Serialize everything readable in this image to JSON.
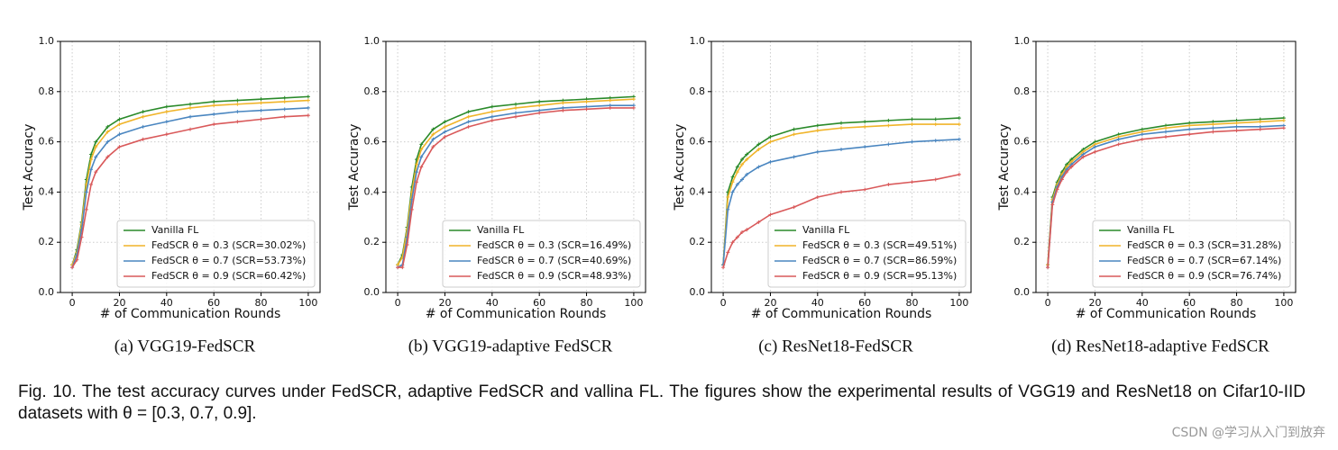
{
  "chart_data": [
    {
      "type": "line",
      "caption": "(a)  VGG19-FedSCR",
      "xlabel": "# of Communication Rounds",
      "ylabel": "Test Accuracy",
      "x": [
        0,
        2,
        4,
        6,
        8,
        10,
        15,
        20,
        30,
        40,
        50,
        60,
        70,
        80,
        90,
        100
      ],
      "xlim": [
        -5,
        105
      ],
      "ylim": [
        0,
        1
      ],
      "xticks": [
        0,
        20,
        40,
        60,
        80,
        100
      ],
      "yticks": [
        {
          "value": 0,
          "label": "0.0"
        },
        0.2,
        0.4,
        0.6,
        0.8,
        {
          "value": 1,
          "label": "1.0"
        }
      ],
      "grid": true,
      "legend": "lower right",
      "series": [
        {
          "name": "Vanilla FL",
          "color": "#2a8a2a",
          "values": [
            0.11,
            0.17,
            0.28,
            0.45,
            0.55,
            0.6,
            0.66,
            0.69,
            0.72,
            0.74,
            0.75,
            0.76,
            0.765,
            0.77,
            0.775,
            0.78
          ]
        },
        {
          "name": "FedSCR θ = 0.3 (SCR=30.02%)",
          "color": "#f0b429",
          "values": [
            0.11,
            0.16,
            0.27,
            0.43,
            0.53,
            0.58,
            0.64,
            0.67,
            0.7,
            0.72,
            0.735,
            0.745,
            0.75,
            0.755,
            0.76,
            0.765
          ]
        },
        {
          "name": "FedSCR θ = 0.7 (SCR=53.73%)",
          "color": "#4a86c0",
          "values": [
            0.1,
            0.15,
            0.25,
            0.4,
            0.49,
            0.54,
            0.6,
            0.63,
            0.66,
            0.68,
            0.7,
            0.71,
            0.72,
            0.725,
            0.73,
            0.735
          ]
        },
        {
          "name": "FedSCR θ = 0.9 (SCR=60.42%)",
          "color": "#d9595a",
          "values": [
            0.1,
            0.13,
            0.22,
            0.33,
            0.43,
            0.48,
            0.54,
            0.58,
            0.61,
            0.63,
            0.65,
            0.67,
            0.68,
            0.69,
            0.7,
            0.705
          ]
        }
      ]
    },
    {
      "type": "line",
      "caption": "(b)  VGG19-adaptive FedSCR",
      "xlabel": "# of Communication Rounds",
      "ylabel": "Test Accuracy",
      "x": [
        0,
        2,
        4,
        6,
        8,
        10,
        15,
        20,
        30,
        40,
        50,
        60,
        70,
        80,
        90,
        100
      ],
      "xlim": [
        -5,
        105
      ],
      "ylim": [
        0,
        1
      ],
      "xticks": [
        0,
        20,
        40,
        60,
        80,
        100
      ],
      "yticks": [
        {
          "value": 0,
          "label": "0.0"
        },
        0.2,
        0.4,
        0.6,
        0.8,
        {
          "value": 1,
          "label": "1.0"
        }
      ],
      "grid": true,
      "legend": "lower right",
      "series": [
        {
          "name": "Vanilla FL",
          "color": "#2a8a2a",
          "values": [
            0.11,
            0.15,
            0.26,
            0.42,
            0.53,
            0.59,
            0.65,
            0.68,
            0.72,
            0.74,
            0.75,
            0.76,
            0.765,
            0.77,
            0.775,
            0.78
          ]
        },
        {
          "name": "FedSCR θ = 0.3 (SCR=16.49%)",
          "color": "#f0b429",
          "values": [
            0.11,
            0.14,
            0.25,
            0.4,
            0.51,
            0.57,
            0.63,
            0.66,
            0.7,
            0.72,
            0.735,
            0.745,
            0.755,
            0.76,
            0.765,
            0.77
          ]
        },
        {
          "name": "FedSCR θ = 0.7 (SCR=40.69%)",
          "color": "#4a86c0",
          "values": [
            0.1,
            0.11,
            0.22,
            0.37,
            0.48,
            0.54,
            0.61,
            0.64,
            0.68,
            0.7,
            0.715,
            0.725,
            0.735,
            0.74,
            0.745,
            0.745
          ]
        },
        {
          "name": "FedSCR θ = 0.9 (SCR=48.93%)",
          "color": "#d9595a",
          "values": [
            0.1,
            0.1,
            0.19,
            0.33,
            0.44,
            0.5,
            0.58,
            0.62,
            0.66,
            0.685,
            0.7,
            0.715,
            0.725,
            0.73,
            0.735,
            0.735
          ]
        }
      ]
    },
    {
      "type": "line",
      "caption": "(c)  ResNet18-FedSCR",
      "xlabel": "# of Communication Rounds",
      "ylabel": "Test Accuracy",
      "x": [
        0,
        2,
        4,
        6,
        8,
        10,
        15,
        20,
        30,
        40,
        50,
        60,
        70,
        80,
        90,
        100
      ],
      "xlim": [
        -5,
        105
      ],
      "ylim": [
        0,
        1
      ],
      "xticks": [
        0,
        20,
        40,
        60,
        80,
        100
      ],
      "yticks": [
        {
          "value": 0,
          "label": "0.0"
        },
        0.2,
        0.4,
        0.6,
        0.8,
        {
          "value": 1,
          "label": "1.0"
        }
      ],
      "grid": true,
      "legend": "lower right",
      "series": [
        {
          "name": "Vanilla FL",
          "color": "#2a8a2a",
          "values": [
            0.11,
            0.4,
            0.46,
            0.5,
            0.53,
            0.55,
            0.59,
            0.62,
            0.65,
            0.665,
            0.675,
            0.68,
            0.685,
            0.69,
            0.69,
            0.695
          ]
        },
        {
          "name": "FedSCR θ = 0.3 (SCR=49.51%)",
          "color": "#f0b429",
          "values": [
            0.11,
            0.38,
            0.44,
            0.48,
            0.51,
            0.53,
            0.57,
            0.6,
            0.63,
            0.645,
            0.655,
            0.66,
            0.665,
            0.67,
            0.67,
            0.67
          ]
        },
        {
          "name": "FedSCR θ = 0.7 (SCR=86.59%)",
          "color": "#4a86c0",
          "values": [
            0.11,
            0.33,
            0.4,
            0.43,
            0.45,
            0.47,
            0.5,
            0.52,
            0.54,
            0.56,
            0.57,
            0.58,
            0.59,
            0.6,
            0.605,
            0.61
          ]
        },
        {
          "name": "FedSCR θ = 0.9 (SCR=95.13%)",
          "color": "#d9595a",
          "values": [
            0.1,
            0.16,
            0.2,
            0.22,
            0.24,
            0.25,
            0.28,
            0.31,
            0.34,
            0.38,
            0.4,
            0.41,
            0.43,
            0.44,
            0.45,
            0.47
          ]
        }
      ]
    },
    {
      "type": "line",
      "caption": "(d)  ResNet18-adaptive FedSCR",
      "xlabel": "# of Communication Rounds",
      "ylabel": "Test Accuracy",
      "x": [
        0,
        2,
        4,
        6,
        8,
        10,
        15,
        20,
        30,
        40,
        50,
        60,
        70,
        80,
        90,
        100
      ],
      "xlim": [
        -5,
        105
      ],
      "ylim": [
        0,
        1
      ],
      "xticks": [
        0,
        20,
        40,
        60,
        80,
        100
      ],
      "yticks": [
        {
          "value": 0,
          "label": "0.0"
        },
        0.2,
        0.4,
        0.6,
        0.8,
        {
          "value": 1,
          "label": "1.0"
        }
      ],
      "grid": true,
      "legend": "lower right",
      "series": [
        {
          "name": "Vanilla FL",
          "color": "#2a8a2a",
          "values": [
            0.11,
            0.38,
            0.44,
            0.48,
            0.51,
            0.53,
            0.57,
            0.6,
            0.63,
            0.65,
            0.665,
            0.675,
            0.68,
            0.685,
            0.69,
            0.695
          ]
        },
        {
          "name": "FedSCR θ = 0.3 (SCR=31.28%)",
          "color": "#f0b429",
          "values": [
            0.11,
            0.37,
            0.43,
            0.47,
            0.5,
            0.52,
            0.56,
            0.59,
            0.62,
            0.64,
            0.655,
            0.665,
            0.67,
            0.675,
            0.68,
            0.685
          ]
        },
        {
          "name": "FedSCR θ = 0.7 (SCR=67.14%)",
          "color": "#4a86c0",
          "values": [
            0.1,
            0.36,
            0.42,
            0.46,
            0.49,
            0.51,
            0.55,
            0.58,
            0.61,
            0.63,
            0.64,
            0.65,
            0.655,
            0.66,
            0.66,
            0.665
          ]
        },
        {
          "name": "FedSCR θ = 0.9 (SCR=76.74%)",
          "color": "#d9595a",
          "values": [
            0.1,
            0.35,
            0.41,
            0.45,
            0.48,
            0.5,
            0.54,
            0.56,
            0.59,
            0.61,
            0.62,
            0.63,
            0.64,
            0.645,
            0.65,
            0.655
          ]
        }
      ]
    }
  ],
  "caption": "Fig. 10. The test accuracy curves under FedSCR, adaptive FedSCR and vallina FL. The figures show the experimental results of VGG19 and ResNet18 on Cifar10-IID datasets with θ = [0.3, 0.7, 0.9].",
  "watermark": "CSDN @学习从入门到放弃"
}
